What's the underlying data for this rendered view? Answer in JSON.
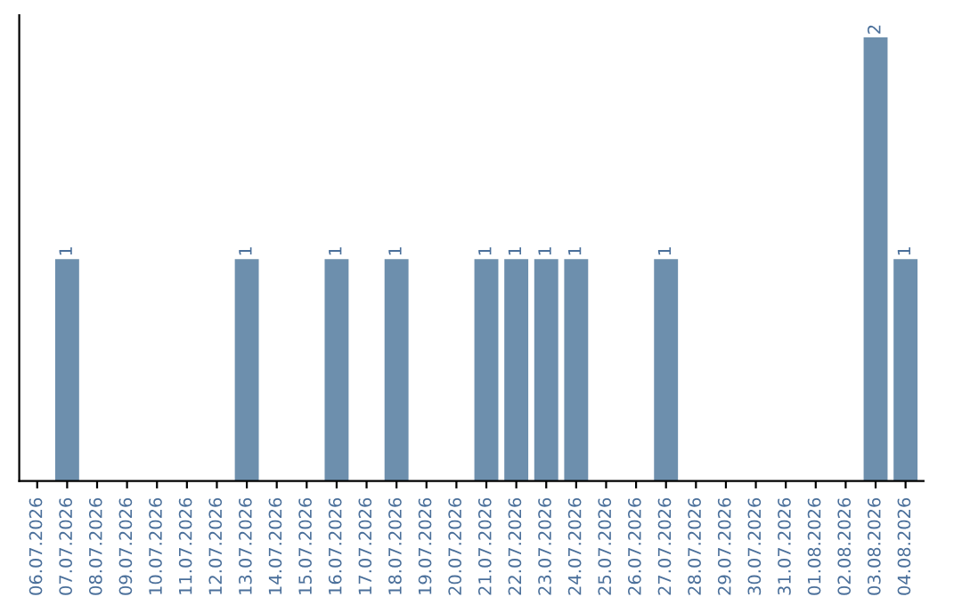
{
  "chart_data": {
    "type": "bar",
    "categories": [
      "06.07.2026",
      "07.07.2026",
      "08.07.2026",
      "09.07.2026",
      "10.07.2026",
      "11.07.2026",
      "12.07.2026",
      "13.07.2026",
      "14.07.2026",
      "15.07.2026",
      "16.07.2026",
      "17.07.2026",
      "18.07.2026",
      "19.07.2026",
      "20.07.2026",
      "21.07.2026",
      "22.07.2026",
      "23.07.2026",
      "24.07.2026",
      "25.07.2026",
      "26.07.2026",
      "27.07.2026",
      "28.07.2026",
      "29.07.2026",
      "30.07.2026",
      "31.07.2026",
      "01.08.2026",
      "02.08.2026",
      "03.08.2026",
      "04.08.2026"
    ],
    "values": [
      0,
      1,
      0,
      0,
      0,
      0,
      0,
      1,
      0,
      0,
      1,
      0,
      1,
      0,
      0,
      1,
      1,
      1,
      1,
      0,
      0,
      1,
      0,
      0,
      0,
      0,
      0,
      0,
      2,
      1
    ],
    "value_labels": [
      null,
      "1",
      null,
      null,
      null,
      null,
      null,
      "1",
      null,
      null,
      "1",
      null,
      "1",
      null,
      null,
      "1",
      "1",
      "1",
      "1",
      null,
      null,
      "1",
      null,
      null,
      null,
      null,
      null,
      null,
      "2",
      "1"
    ],
    "color": "#6d8fad",
    "tick_labels": "x",
    "grid": false,
    "legend": false
  }
}
